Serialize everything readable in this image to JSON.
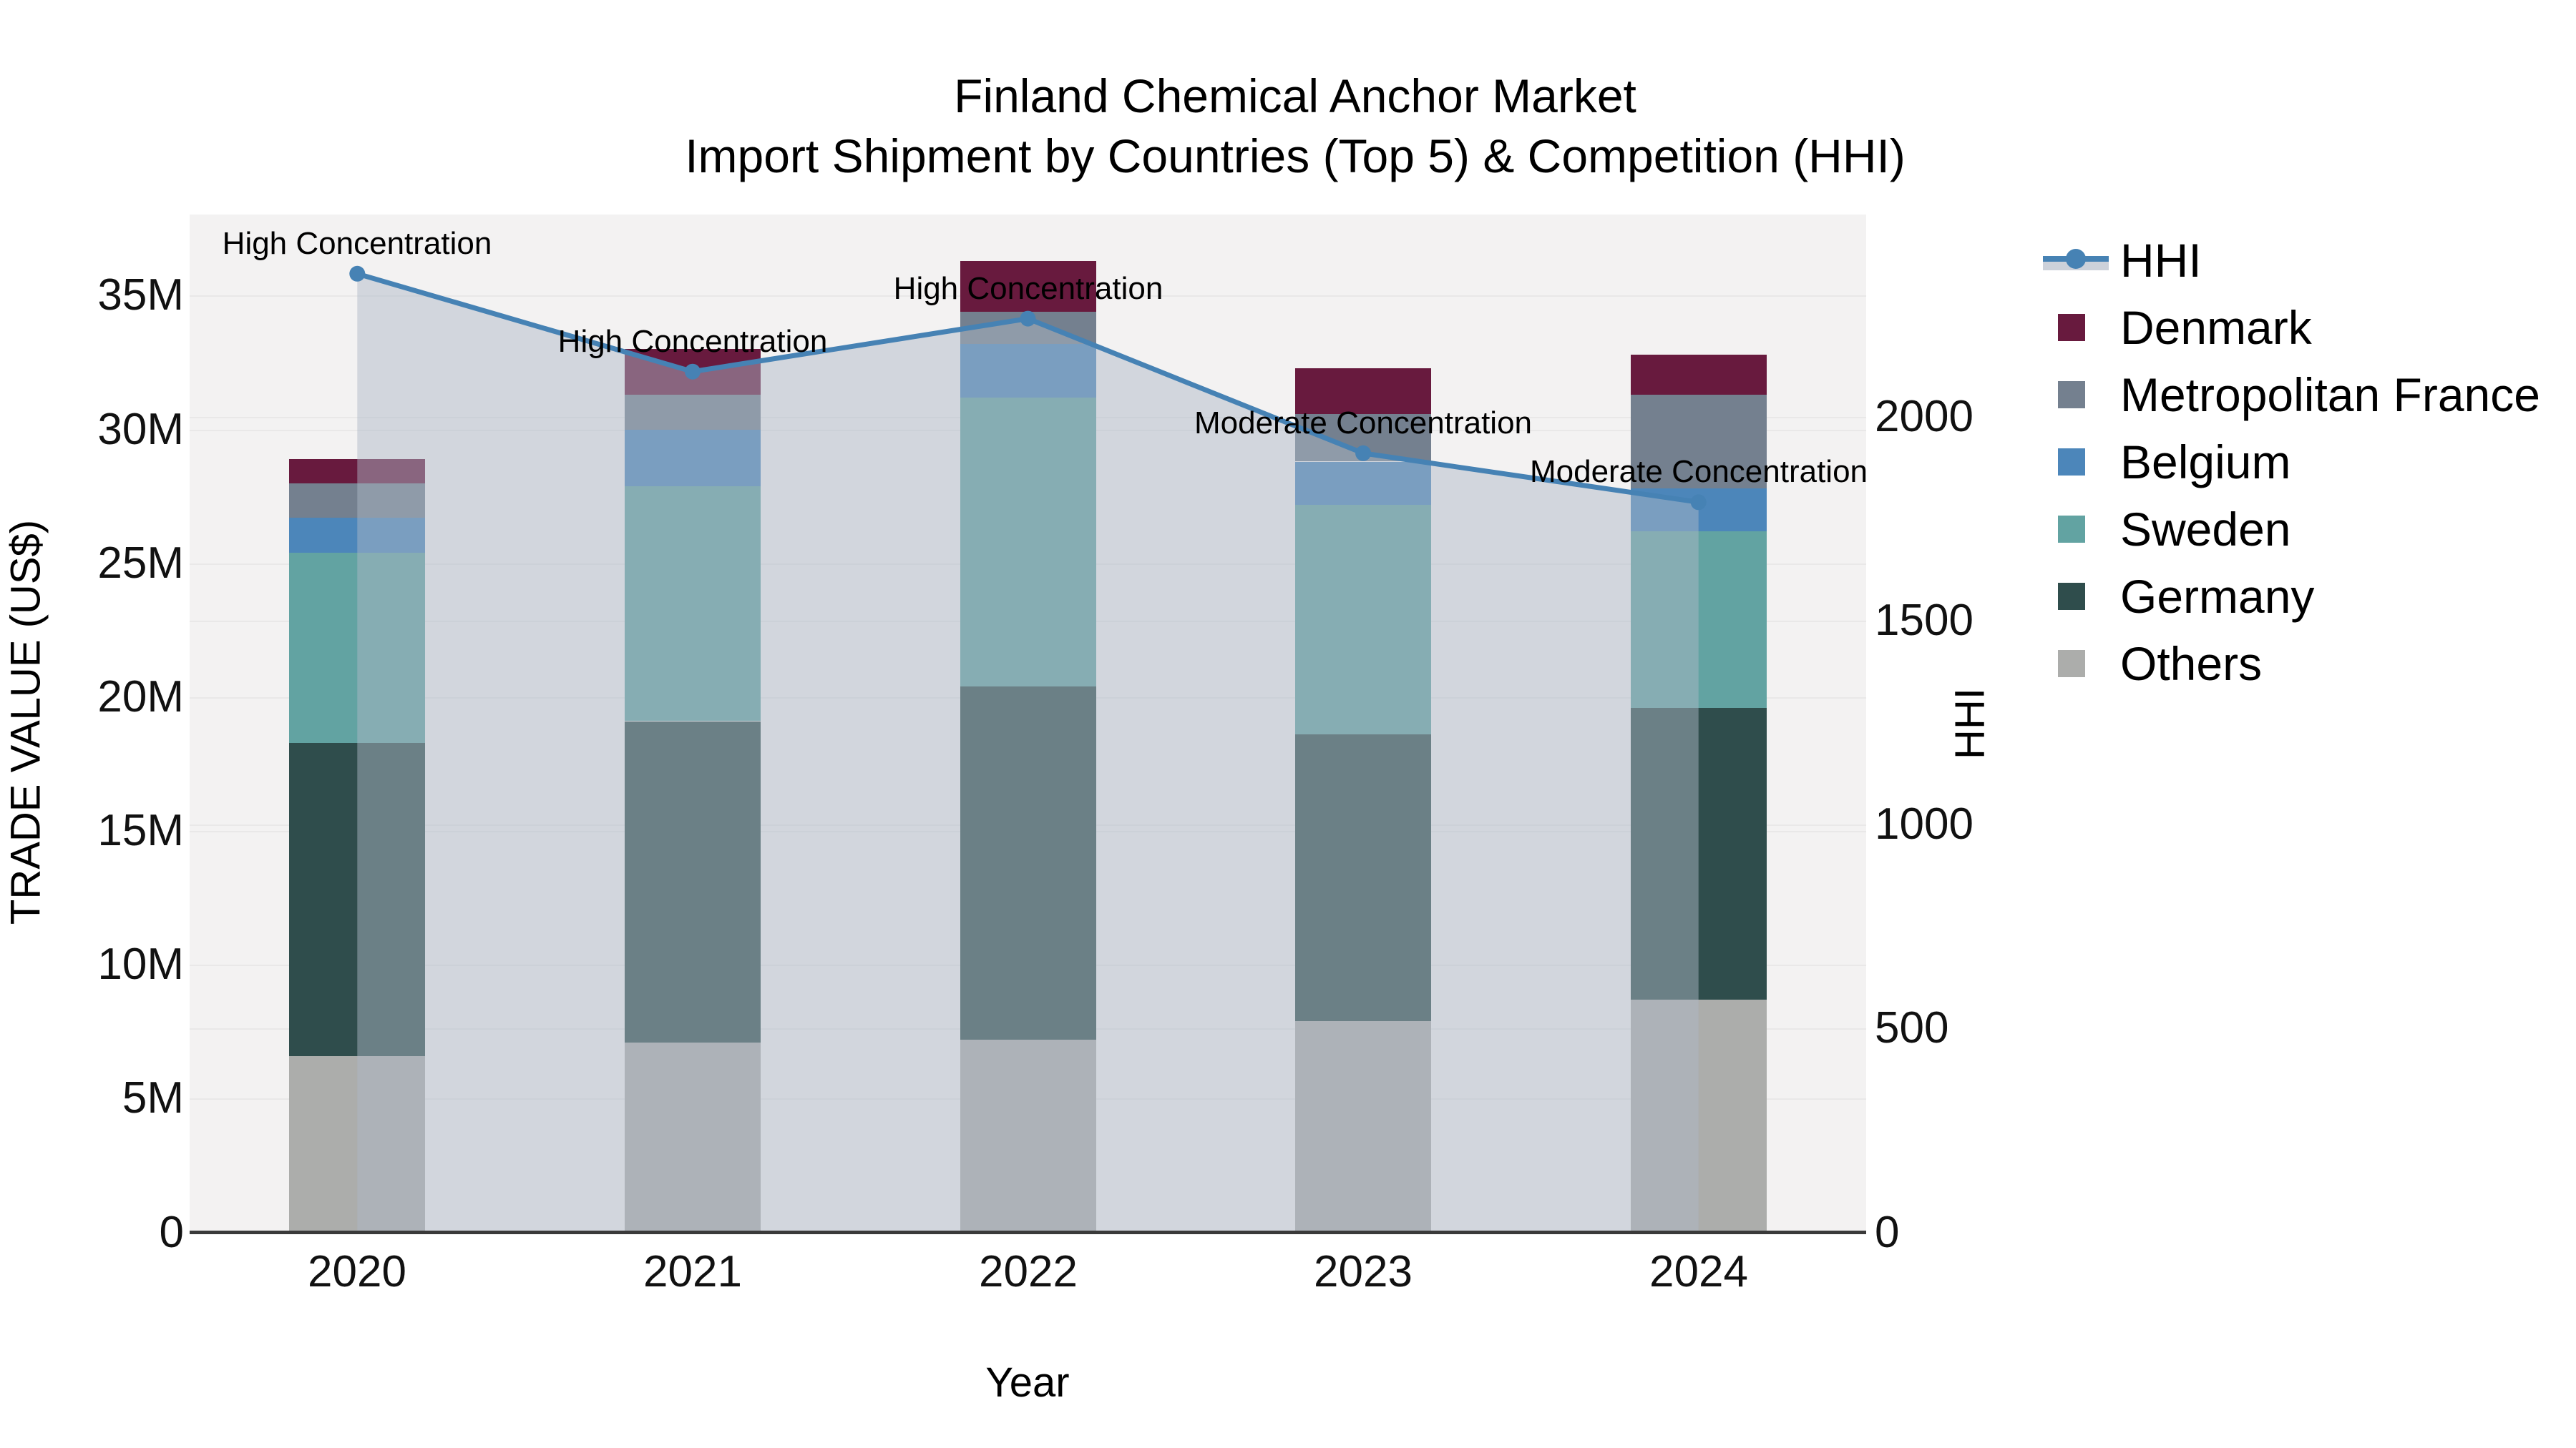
{
  "title": {
    "line1": "Finland Chemical Anchor Market",
    "line2": "Import Shipment by Countries (Top 5) & Competition (HHI)"
  },
  "axes": {
    "x": {
      "title": "Year"
    },
    "y_left": {
      "title": "TRADE VALUE (US$)",
      "tick_labels": [
        "0",
        "5M",
        "10M",
        "15M",
        "20M",
        "25M",
        "30M",
        "35M"
      ],
      "tick_values_m": [
        0,
        5,
        10,
        15,
        20,
        25,
        30,
        35
      ]
    },
    "y_right": {
      "title": "HHI",
      "tick_labels": [
        "0",
        "500",
        "1000",
        "1500",
        "2000"
      ],
      "tick_values": [
        0,
        500,
        1000,
        1500,
        2000
      ]
    }
  },
  "legend": {
    "items": [
      {
        "label": "HHI",
        "type": "line",
        "color": "#4682b4"
      },
      {
        "label": "Denmark",
        "type": "box",
        "color": "#681a3e"
      },
      {
        "label": "Metropolitan France",
        "type": "box",
        "color": "#74808f"
      },
      {
        "label": "Belgium",
        "type": "box",
        "color": "#4c86ba"
      },
      {
        "label": "Sweden",
        "type": "box",
        "color": "#62a3a2"
      },
      {
        "label": "Germany",
        "type": "box",
        "color": "#2f4d4c"
      },
      {
        "label": "Others",
        "type": "box",
        "color": "#acadab"
      }
    ]
  },
  "chart_data": {
    "type": "stacked-bar+line",
    "title": "Finland Chemical Anchor Market — Import Shipment by Countries (Top 5) & Competition (HHI)",
    "xlabel": "Year",
    "ylabel_left": "TRADE VALUE (US$)",
    "ylabel_right": "HHI",
    "categories": [
      "2020",
      "2021",
      "2022",
      "2023",
      "2024"
    ],
    "series": [
      {
        "name": "Others",
        "color": "#acadab",
        "values_musd": [
          6.6,
          7.1,
          7.2,
          7.9,
          8.7
        ]
      },
      {
        "name": "Germany",
        "color": "#2f4d4c",
        "values_musd": [
          11.7,
          12.0,
          13.2,
          10.7,
          10.9
        ]
      },
      {
        "name": "Sweden",
        "color": "#62a3a2",
        "values_musd": [
          7.1,
          8.8,
          10.8,
          8.6,
          6.6
        ]
      },
      {
        "name": "Belgium",
        "color": "#4c86ba",
        "values_musd": [
          1.3,
          2.1,
          2.0,
          1.6,
          1.6
        ]
      },
      {
        "name": "Metropolitan France",
        "color": "#74808f",
        "values_musd": [
          1.3,
          1.3,
          1.2,
          1.8,
          3.5
        ]
      },
      {
        "name": "Denmark",
        "color": "#681a3e",
        "values_musd": [
          0.9,
          1.7,
          1.9,
          1.7,
          1.5
        ]
      }
    ],
    "totals_musd": [
      28.9,
      33.0,
      36.3,
      32.3,
      32.8
    ],
    "line_series": {
      "name": "HHI",
      "axis": "right",
      "color": "#4682b4",
      "values": [
        2350,
        2110,
        2240,
        1910,
        1790
      ]
    },
    "annotations": [
      "High Concentration",
      "High Concentration",
      "High Concentration",
      "Moderate Concentration",
      "Moderate Concentration"
    ],
    "ylim_left_musd": [
      0,
      38
    ],
    "ylim_right": [
      0,
      2495
    ],
    "grid": true,
    "legend_position": "right"
  },
  "colors": {
    "plot_background": "#f3f2f2",
    "page_background": "#ffffff",
    "gridline": "#e9e8e8",
    "axis_line": "#3a3a3a",
    "hhi_line": "#4682b4",
    "hhi_area_fill": "rgba(174,183,199,0.48)",
    "legend_area_band": "#ccd1da"
  }
}
